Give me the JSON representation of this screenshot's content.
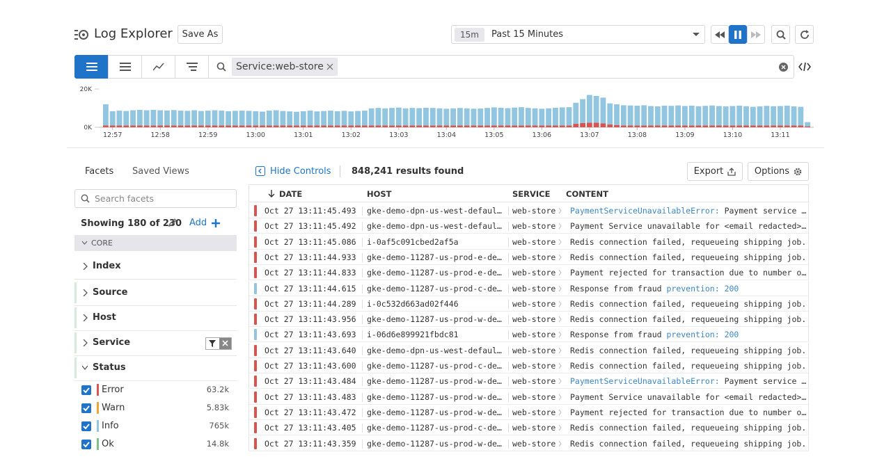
{
  "header": {
    "title": "Log Explorer",
    "save_as": "Save As",
    "time_badge": "15m",
    "time_range": "Past 15 Minutes"
  },
  "search": {
    "query": "Service:web-store"
  },
  "chart_data": {
    "type": "bar",
    "stacked": true,
    "categories": [
      null,
      "12:57",
      null,
      null,
      null,
      null,
      null,
      null,
      "12:58",
      null,
      null,
      null,
      null,
      null,
      null,
      "12:59",
      null,
      null,
      null,
      null,
      null,
      null,
      "13:00",
      null,
      null,
      null,
      null,
      null,
      null,
      "13:01",
      null,
      null,
      null,
      null,
      null,
      null,
      "13:02",
      null,
      null,
      null,
      null,
      null,
      null,
      "13:03",
      null,
      null,
      null,
      null,
      null,
      null,
      "13:04",
      null,
      null,
      null,
      null,
      null,
      null,
      "13:05",
      null,
      null,
      null,
      null,
      null,
      null,
      "13:06",
      null,
      null,
      null,
      null,
      null,
      null,
      "13:07",
      null,
      null,
      null,
      null,
      null,
      null,
      "13:08",
      null,
      null,
      null,
      null,
      null,
      null,
      "13:09",
      null,
      null,
      null,
      null,
      null,
      null,
      "13:10",
      null,
      null,
      null,
      null,
      null,
      null,
      "13:11",
      null,
      null,
      null,
      null
    ],
    "series": [
      {
        "name": "Error",
        "color": "#d9534f",
        "values": [
          1000,
          900,
          900,
          900,
          900,
          900,
          900,
          900,
          900,
          900,
          900,
          900,
          900,
          900,
          900,
          900,
          900,
          900,
          900,
          900,
          900,
          900,
          900,
          900,
          900,
          900,
          900,
          900,
          900,
          900,
          900,
          900,
          900,
          900,
          900,
          900,
          900,
          900,
          900,
          900,
          900,
          900,
          900,
          900,
          900,
          900,
          900,
          900,
          900,
          900,
          900,
          900,
          900,
          900,
          900,
          900,
          900,
          900,
          900,
          900,
          900,
          900,
          900,
          900,
          900,
          900,
          900,
          900,
          900,
          1800,
          2200,
          2400,
          2400,
          2000,
          1500,
          1200,
          900,
          900,
          900,
          900,
          900,
          900,
          900,
          900,
          900,
          900,
          900,
          900,
          900,
          900,
          900,
          900,
          900,
          900,
          900,
          900,
          900,
          900,
          900,
          900,
          900,
          900,
          900,
          500
        ]
      },
      {
        "name": "Info",
        "color": "#92c5e0",
        "values": [
          11000,
          7500,
          7800,
          7600,
          8000,
          8200,
          8000,
          8200,
          8000,
          7900,
          8100,
          7800,
          7700,
          8000,
          7600,
          7800,
          8000,
          7800,
          7500,
          7700,
          7800,
          7700,
          7500,
          7300,
          7800,
          8000,
          7600,
          7400,
          7200,
          7500,
          7800,
          7400,
          7600,
          7800,
          7500,
          7700,
          7400,
          7600,
          7800,
          9000,
          9200,
          9000,
          9200,
          9400,
          9000,
          9200,
          9100,
          9300,
          9200,
          9000,
          8800,
          9000,
          9200,
          9000,
          8800,
          8900,
          9200,
          9500,
          9300,
          9100,
          9400,
          9600,
          9200,
          9000,
          8800,
          9000,
          9300,
          9500,
          9600,
          11000,
          12500,
          14500,
          14000,
          13500,
          11000,
          10800,
          10600,
          10500,
          10400,
          10600,
          10200,
          10000,
          10400,
          10300,
          10500,
          10200,
          10400,
          10100,
          10300,
          10500,
          10200,
          10000,
          10200,
          10400,
          10100,
          9800,
          10000,
          10300,
          10100,
          10200,
          10400,
          10000,
          9800,
          2200
        ]
      }
    ],
    "ylim": [
      0,
      20000
    ],
    "yticks": [
      {
        "value": 0,
        "label": "0K"
      },
      {
        "value": 20000,
        "label": "20K"
      }
    ]
  },
  "facets": {
    "tabs": [
      "Facets",
      "Saved Views"
    ],
    "search_placeholder": "Search facets",
    "showing": "Showing 180 of 230",
    "add": "Add",
    "group": "CORE",
    "items": [
      "Index",
      "Source",
      "Host",
      "Service",
      "Status"
    ],
    "status": [
      {
        "label": "Error",
        "count": "63.2k",
        "color": "#d9534f"
      },
      {
        "label": "Warn",
        "count": "5.83k",
        "color": "#f0a23b"
      },
      {
        "label": "Info",
        "count": "765k",
        "color": "#92c5e0"
      },
      {
        "label": "Ok",
        "count": "14.8k",
        "color": "#7cc08a"
      }
    ]
  },
  "results": {
    "hide_controls": "Hide Controls",
    "count": "848,241 results found",
    "export": "Export",
    "options": "Options",
    "columns": [
      "DATE",
      "HOST",
      "SERVICE",
      "CONTENT"
    ],
    "level_colors": {
      "error": "#d9534f",
      "info": "#92c5e0"
    },
    "rows": [
      {
        "level": "error",
        "date": "Oct 27 13:11:45.493",
        "host": "gke-demo-dpn-us-west-defaul…",
        "service": "web-store",
        "content": [
          {
            "text": "PaymentServiceUnavailableError:",
            "key": true
          },
          {
            "text": " Payment service …",
            "key": false
          }
        ]
      },
      {
        "level": "error",
        "date": "Oct 27 13:11:45.492",
        "host": "gke-demo-dpn-us-west-defaul…",
        "service": "web-store",
        "content": [
          {
            "text": "Payment Service unavailable for <email redacted>…",
            "key": false
          }
        ]
      },
      {
        "level": "error",
        "date": "Oct 27 13:11:45.086",
        "host": "i-0af5c091cbed2af5a",
        "service": "web-store",
        "content": [
          {
            "text": "Redis connection failed, requeueing shipping job.",
            "key": false
          }
        ]
      },
      {
        "level": "error",
        "date": "Oct 27 13:11:44.933",
        "host": "gke-demo-11287-us-prod-e-de…",
        "service": "web-store",
        "content": [
          {
            "text": "Redis connection failed, requeueing shipping job.",
            "key": false
          }
        ]
      },
      {
        "level": "error",
        "date": "Oct 27 13:11:44.833",
        "host": "gke-demo-11287-us-prod-e-de…",
        "service": "web-store",
        "content": [
          {
            "text": "Payment rejected for transaction due to number o…",
            "key": false
          }
        ]
      },
      {
        "level": "info",
        "date": "Oct 27 13:11:44.615",
        "host": "gke-demo-11287-us-prod-c-de…",
        "service": "web-store",
        "content": [
          {
            "text": "Response from fraud ",
            "key": false
          },
          {
            "text": "prevention: 200",
            "key": true
          }
        ]
      },
      {
        "level": "error",
        "date": "Oct 27 13:11:44.289",
        "host": "i-0c532d663ad02f446",
        "service": "web-store",
        "content": [
          {
            "text": "Redis connection failed, requeueing shipping job.",
            "key": false
          }
        ]
      },
      {
        "level": "error",
        "date": "Oct 27 13:11:43.956",
        "host": "gke-demo-11287-us-prod-w-de…",
        "service": "web-store",
        "content": [
          {
            "text": "Redis connection failed, requeueing shipping job.",
            "key": false
          }
        ]
      },
      {
        "level": "info",
        "date": "Oct 27 13:11:43.693",
        "host": "i-06d6e899921fbdc81",
        "service": "web-store",
        "content": [
          {
            "text": "Response from fraud ",
            "key": false
          },
          {
            "text": "prevention: 200",
            "key": true
          }
        ]
      },
      {
        "level": "error",
        "date": "Oct 27 13:11:43.640",
        "host": "gke-demo-dpn-us-west-defaul…",
        "service": "web-store",
        "content": [
          {
            "text": "Redis connection failed, requeueing shipping job.",
            "key": false
          }
        ]
      },
      {
        "level": "error",
        "date": "Oct 27 13:11:43.600",
        "host": "gke-demo-11287-us-prod-c-de…",
        "service": "web-store",
        "content": [
          {
            "text": "Redis connection failed, requeueing shipping job.",
            "key": false
          }
        ]
      },
      {
        "level": "error",
        "date": "Oct 27 13:11:43.484",
        "host": "gke-demo-11287-us-prod-w-de…",
        "service": "web-store",
        "content": [
          {
            "text": "PaymentServiceUnavailableError:",
            "key": true
          },
          {
            "text": " Payment service …",
            "key": false
          }
        ]
      },
      {
        "level": "error",
        "date": "Oct 27 13:11:43.483",
        "host": "gke-demo-11287-us-prod-w-de…",
        "service": "web-store",
        "content": [
          {
            "text": "Payment Service unavailable for <email redacted>…",
            "key": false
          }
        ]
      },
      {
        "level": "error",
        "date": "Oct 27 13:11:43.472",
        "host": "gke-demo-11287-us-prod-w-de…",
        "service": "web-store",
        "content": [
          {
            "text": "Payment rejected for transaction due to number o…",
            "key": false
          }
        ]
      },
      {
        "level": "error",
        "date": "Oct 27 13:11:43.405",
        "host": "gke-demo-11287-us-prod-c-de…",
        "service": "web-store",
        "content": [
          {
            "text": "Redis connection failed, requeueing shipping job.",
            "key": false
          }
        ]
      },
      {
        "level": "error",
        "date": "Oct 27 13:11:43.359",
        "host": "gke-demo-11287-us-prod-w-de…",
        "service": "web-store",
        "content": [
          {
            "text": "Redis connection failed, requeueing shipping job.",
            "key": false
          }
        ]
      }
    ]
  }
}
